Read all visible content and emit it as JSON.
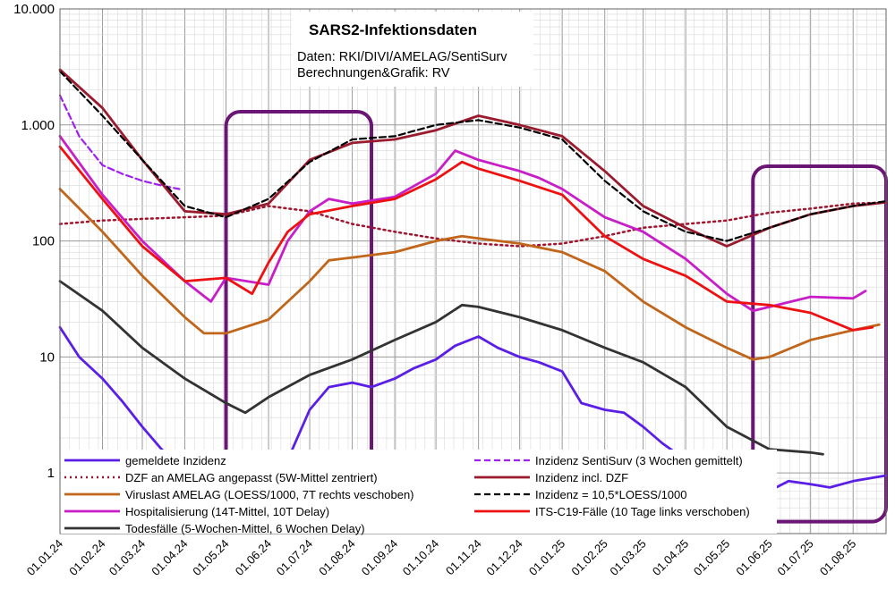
{
  "chart_data": {
    "type": "line",
    "title": "SARS2-Infektionsdaten",
    "subtitle_lines": [
      "Daten: RKI/DIVI/AMELAG/SentiSurv",
      "Berechnungen&Grafik: RV"
    ],
    "y_scale": "log",
    "ylim": [
      0.3,
      10000
    ],
    "y_ticks": [
      1,
      10,
      100,
      1000,
      10000
    ],
    "y_tick_labels": [
      "1",
      "10",
      "100",
      "1.000",
      "10.000"
    ],
    "xlim": [
      "2024-01-01",
      "2025-08-25"
    ],
    "x_tick_dates": [
      "2024-01-01",
      "2024-02-01",
      "2024-03-01",
      "2024-04-01",
      "2024-05-01",
      "2024-06-01",
      "2024-07-01",
      "2024-08-01",
      "2024-09-01",
      "2024-10-01",
      "2024-11-01",
      "2024-12-01",
      "2025-01-01",
      "2025-02-01",
      "2025-03-01",
      "2025-04-01",
      "2025-05-01",
      "2025-06-01",
      "2025-07-01",
      "2025-08-01"
    ],
    "x_tick_labels": [
      "01.01.24",
      "01.02.24",
      "01.03.24",
      "01.04.24",
      "01.05.24",
      "01.06.24",
      "01.07.24",
      "01.08.24",
      "01.09.24",
      "01.10.24",
      "01.11.24",
      "01.12.24",
      "01.01.25",
      "01.02.25",
      "01.03.25",
      "01.04.25",
      "01.05.25",
      "01.06.25",
      "01.07.25",
      "01.08.25"
    ],
    "grid": true,
    "series": [
      {
        "name": "gemeldete Inzidenz",
        "color": "#5a1ee6",
        "style": "solid",
        "x": [
          "2024-01-01",
          "2024-01-15",
          "2024-02-01",
          "2024-02-15",
          "2024-03-01",
          "2024-03-15",
          "2024-04-01",
          "2024-04-15",
          "2024-05-01",
          "2024-05-15",
          "2024-06-01",
          "2024-06-15",
          "2024-07-01",
          "2024-07-15",
          "2024-08-01",
          "2024-08-15",
          "2024-09-01",
          "2024-09-15",
          "2024-10-01",
          "2024-10-15",
          "2024-11-01",
          "2024-11-15",
          "2024-12-01",
          "2024-12-15",
          "2025-01-01",
          "2025-01-15",
          "2025-02-01",
          "2025-02-15",
          "2025-03-01",
          "2025-03-15",
          "2025-04-01",
          "2025-04-15",
          "2025-05-01",
          "2025-05-15",
          "2025-06-01",
          "2025-06-15",
          "2025-07-01",
          "2025-07-15",
          "2025-08-01",
          "2025-08-25"
        ],
        "y": [
          18,
          10,
          6.5,
          4.2,
          2.5,
          1.6,
          1.1,
          0.8,
          0.65,
          0.9,
          1.0,
          1.3,
          3.5,
          5.5,
          6.0,
          5.5,
          6.5,
          8.0,
          9.5,
          12.5,
          15,
          12,
          10,
          9,
          7.5,
          4.0,
          3.5,
          3.3,
          2.5,
          1.8,
          1.3,
          1.0,
          0.8,
          0.6,
          0.7,
          0.85,
          0.8,
          0.75,
          0.85,
          0.95
        ]
      },
      {
        "name": "DZF an AMELAG angepasst (5W-Mittel zentriert)",
        "color": "#a0142e",
        "style": "dotted",
        "x": [
          "2024-01-01",
          "2024-02-01",
          "2024-03-01",
          "2024-04-01",
          "2024-05-01",
          "2024-06-01",
          "2024-07-01",
          "2024-08-01",
          "2024-09-01",
          "2024-10-01",
          "2024-11-01",
          "2024-12-01",
          "2025-01-01",
          "2025-02-01",
          "2025-03-01",
          "2025-04-01",
          "2025-05-01",
          "2025-06-01",
          "2025-07-01",
          "2025-08-01",
          "2025-08-25"
        ],
        "y": [
          140,
          150,
          155,
          160,
          165,
          200,
          180,
          140,
          120,
          105,
          95,
          90,
          95,
          110,
          130,
          140,
          150,
          175,
          190,
          210,
          215
        ]
      },
      {
        "name": "Viruslast AMELAG (LOESS/1000, 7T rechts veschoben)",
        "color": "#c0651a",
        "style": "solid",
        "x": [
          "2024-01-01",
          "2024-02-01",
          "2024-03-01",
          "2024-04-01",
          "2024-04-15",
          "2024-05-01",
          "2024-06-01",
          "2024-07-01",
          "2024-07-15",
          "2024-08-01",
          "2024-09-01",
          "2024-10-01",
          "2024-10-20",
          "2024-11-01",
          "2024-12-01",
          "2025-01-01",
          "2025-02-01",
          "2025-03-01",
          "2025-04-01",
          "2025-05-01",
          "2025-05-20",
          "2025-06-01",
          "2025-07-01",
          "2025-08-01",
          "2025-08-20"
        ],
        "y": [
          280,
          120,
          50,
          22,
          16,
          16,
          21,
          45,
          68,
          72,
          80,
          100,
          110,
          105,
          95,
          80,
          55,
          30,
          18,
          12,
          9.5,
          10,
          14,
          17,
          19
        ]
      },
      {
        "name": "Hospitalisierung (14T-Mittel, 10T Delay)",
        "color": "#c81ec8",
        "style": "solid",
        "x": [
          "2024-01-01",
          "2024-02-01",
          "2024-03-01",
          "2024-04-01",
          "2024-04-20",
          "2024-05-01",
          "2024-06-01",
          "2024-06-15",
          "2024-07-01",
          "2024-07-15",
          "2024-08-01",
          "2024-09-01",
          "2024-10-01",
          "2024-10-15",
          "2024-11-01",
          "2024-11-15",
          "2024-12-01",
          "2024-12-15",
          "2025-01-01",
          "2025-02-01",
          "2025-03-01",
          "2025-04-01",
          "2025-05-01",
          "2025-05-20",
          "2025-06-01",
          "2025-07-01",
          "2025-08-01",
          "2025-08-10"
        ],
        "y": [
          800,
          250,
          100,
          45,
          30,
          48,
          42,
          100,
          180,
          230,
          210,
          240,
          380,
          600,
          500,
          450,
          400,
          350,
          280,
          160,
          120,
          70,
          35,
          25,
          27,
          33,
          32,
          37
        ]
      },
      {
        "name": "Todesfälle (5-Wochen-Mittel, 6 Wochen Delay)",
        "color": "#333333",
        "style": "solid",
        "x": [
          "2024-01-01",
          "2024-02-01",
          "2024-03-01",
          "2024-04-01",
          "2024-05-01",
          "2024-05-15",
          "2024-06-01",
          "2024-07-01",
          "2024-08-01",
          "2024-09-01",
          "2024-10-01",
          "2024-10-20",
          "2024-11-01",
          "2024-12-01",
          "2025-01-01",
          "2025-02-01",
          "2025-03-01",
          "2025-04-01",
          "2025-05-01",
          "2025-06-01",
          "2025-07-01",
          "2025-07-10"
        ],
        "y": [
          45,
          25,
          12,
          6.5,
          4.0,
          3.3,
          4.5,
          7.0,
          9.5,
          14,
          20,
          28,
          27,
          22,
          17,
          12,
          9,
          5.5,
          2.5,
          1.6,
          1.5,
          1.45
        ]
      },
      {
        "name": "Inzidenz SentiSurv (3 Wochen gemittelt)",
        "color": "#a020f0",
        "style": "dashed",
        "x": [
          "2024-01-01",
          "2024-01-15",
          "2024-02-01",
          "2024-02-15",
          "2024-03-01",
          "2024-03-15",
          "2024-03-28"
        ],
        "y": [
          1800,
          800,
          450,
          380,
          330,
          300,
          280
        ]
      },
      {
        "name": "Inzidenz incl. DZF",
        "color": "#9b1a2e",
        "style": "solid",
        "x": [
          "2024-01-01",
          "2024-02-01",
          "2024-03-01",
          "2024-04-01",
          "2024-05-01",
          "2024-06-01",
          "2024-07-01",
          "2024-08-01",
          "2024-09-01",
          "2024-10-01",
          "2024-11-01",
          "2024-12-01",
          "2025-01-01",
          "2025-02-01",
          "2025-03-01",
          "2025-04-01",
          "2025-05-01",
          "2025-06-01",
          "2025-07-01",
          "2025-08-01",
          "2025-08-25"
        ],
        "y": [
          3000,
          1400,
          500,
          180,
          170,
          210,
          500,
          700,
          750,
          900,
          1200,
          1000,
          800,
          400,
          200,
          130,
          90,
          130,
          170,
          200,
          215
        ]
      },
      {
        "name": "Inzidenz = 10,5*LOESS/1000",
        "color": "#000000",
        "style": "dashed",
        "x": [
          "2024-01-01",
          "2024-02-01",
          "2024-03-01",
          "2024-04-01",
          "2024-05-01",
          "2024-06-01",
          "2024-07-01",
          "2024-08-01",
          "2024-09-01",
          "2024-10-01",
          "2024-11-01",
          "2024-12-01",
          "2025-01-01",
          "2025-02-01",
          "2025-03-01",
          "2025-04-01",
          "2025-05-01",
          "2025-06-01",
          "2025-07-01",
          "2025-08-01",
          "2025-08-25"
        ],
        "y": [
          2900,
          1200,
          500,
          200,
          160,
          230,
          480,
          750,
          800,
          1000,
          1100,
          950,
          750,
          330,
          180,
          120,
          100,
          130,
          170,
          200,
          220
        ]
      },
      {
        "name": "ITS-C19-Fälle (10 Tage links verschoben)",
        "color": "#ee1111",
        "style": "solid",
        "x": [
          "2024-01-01",
          "2024-02-01",
          "2024-03-01",
          "2024-04-01",
          "2024-05-01",
          "2024-05-20",
          "2024-06-01",
          "2024-06-15",
          "2024-07-01",
          "2024-08-01",
          "2024-09-01",
          "2024-10-01",
          "2024-10-20",
          "2024-11-01",
          "2024-12-01",
          "2025-01-01",
          "2025-02-01",
          "2025-03-01",
          "2025-04-01",
          "2025-05-01",
          "2025-06-01",
          "2025-07-01",
          "2025-08-01",
          "2025-08-15"
        ],
        "y": [
          650,
          230,
          90,
          45,
          48,
          35,
          65,
          120,
          170,
          200,
          230,
          340,
          480,
          420,
          330,
          250,
          110,
          70,
          50,
          30,
          28,
          24,
          17,
          18
        ]
      }
    ],
    "highlight_boxes": [
      {
        "x0": "2024-05-01",
        "x1": "2024-08-15",
        "y0": 0.45,
        "y1": 1300,
        "color": "#6b1575"
      },
      {
        "x0": "2025-05-20",
        "x1": "2025-08-25",
        "y0": 0.38,
        "y1": 440,
        "color": "#6b1575"
      }
    ],
    "legend": {
      "placement": "bottom",
      "columns": [
        [
          "gemeldete Inzidenz",
          "DZF an AMELAG angepasst (5W-Mittel zentriert)",
          "Viruslast AMELAG (LOESS/1000, 7T rechts veschoben)",
          "Hospitalisierung (14T-Mittel, 10T Delay)",
          "Todesfälle (5-Wochen-Mittel, 6 Wochen Delay)"
        ],
        [
          "Inzidenz SentiSurv (3 Wochen gemittelt)",
          "Inzidenz incl. DZF",
          "Inzidenz = 10,5*LOESS/1000",
          "ITS-C19-Fälle (10 Tage links verschoben)"
        ]
      ]
    }
  }
}
